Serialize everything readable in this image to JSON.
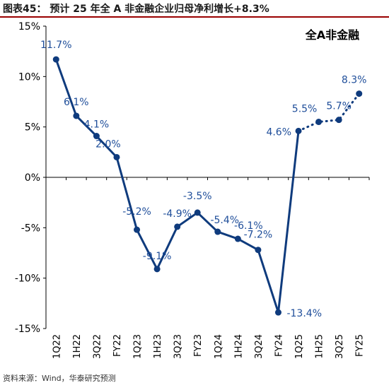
{
  "header": {
    "title": "图表45： 预计 25 年全 A 非金融企业归母净利增长+8.3%"
  },
  "source": "资料来源：Wind，华泰研究预测",
  "colors": {
    "series": "#0f3b7d",
    "label": "#1f4e9a",
    "rule": "#9a0000"
  },
  "chart_data": {
    "type": "line",
    "title": "全A非金融",
    "categories": [
      "1Q22",
      "1H22",
      "3Q22",
      "FY22",
      "1Q23",
      "1H23",
      "3Q23",
      "FY23",
      "1Q24",
      "1H24",
      "3Q24",
      "FY24",
      "1Q25",
      "1H25",
      "3Q25",
      "FY25"
    ],
    "series": [
      {
        "values": [
          11.7,
          6.1,
          4.1,
          2.0,
          -5.2,
          -9.1,
          -4.9,
          -3.5,
          -5.4,
          -6.1,
          -7.2,
          -13.4,
          4.6,
          5.5,
          5.7,
          8.3
        ],
        "data_labels": [
          "11.7%",
          "6.1%",
          "4.1%",
          "2.0%",
          "-5.2%",
          "-9.1%",
          "-4.9%",
          "-3.5%",
          "-5.4%",
          "-6.1%",
          "-7.2%",
          "-13.4%",
          "4.6%",
          "5.5%",
          "5.7%",
          "8.3%"
        ],
        "actual_count": 13,
        "forecast_style": "dotted"
      }
    ],
    "ylim": [
      -15,
      15
    ],
    "yticks": [
      15,
      10,
      5,
      0,
      -5,
      -10,
      -15
    ],
    "ytick_labels": [
      "15%",
      "10%",
      "5%",
      "0%",
      "-5%",
      "-10%",
      "-15%"
    ],
    "grid": false
  }
}
